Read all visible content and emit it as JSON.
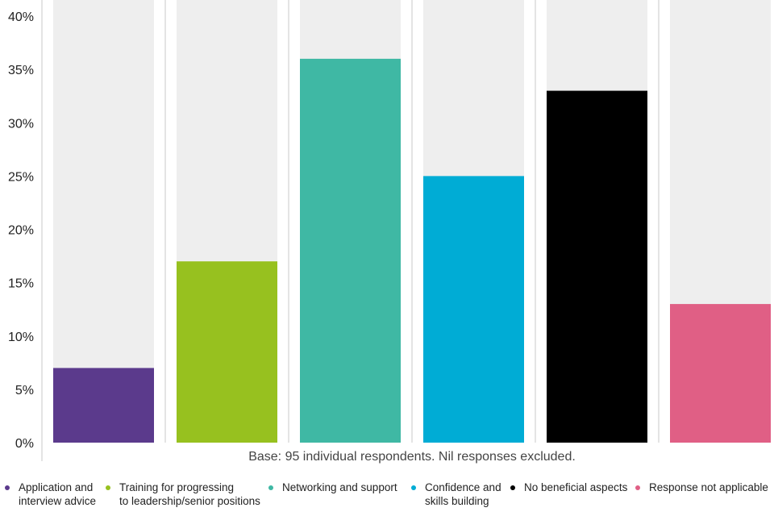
{
  "chart_data": {
    "type": "bar",
    "categories": [
      "Application and interview advice",
      "Training for progressing to leadership/senior positions",
      "Networking and support",
      "Confidence and skills building",
      "No beneficial aspects",
      "Response not applicable"
    ],
    "values": [
      7,
      17,
      36,
      25,
      33,
      13
    ],
    "colors": [
      "#5b3a8c",
      "#97c11f",
      "#3fb8a4",
      "#00acd5",
      "#000000",
      "#e05f85"
    ],
    "background_bar_color": "#eeeeee",
    "ylim": [
      0,
      40
    ],
    "y_ticks": [
      "0%",
      "5%",
      "10%",
      "15%",
      "20%",
      "25%",
      "30%",
      "35%",
      "40%"
    ],
    "y_tick_values": [
      0,
      5,
      10,
      15,
      20,
      25,
      30,
      35,
      40
    ],
    "note": "Base: 95 individual respondents. Nil responses excluded.",
    "grid": false,
    "legend_position": "bottom"
  },
  "legend": [
    {
      "label": "Application and\ninterview advice",
      "color": "#5b3a8c"
    },
    {
      "label": "Training for progressing\nto leadership/senior positions",
      "color": "#97c11f"
    },
    {
      "label": "Networking and support",
      "color": "#3fb8a4"
    },
    {
      "label": "Confidence and\nskills building",
      "color": "#00acd5"
    },
    {
      "label": "No beneficial aspects",
      "color": "#000000"
    },
    {
      "label": "Response not applicable",
      "color": "#e05f85"
    }
  ]
}
